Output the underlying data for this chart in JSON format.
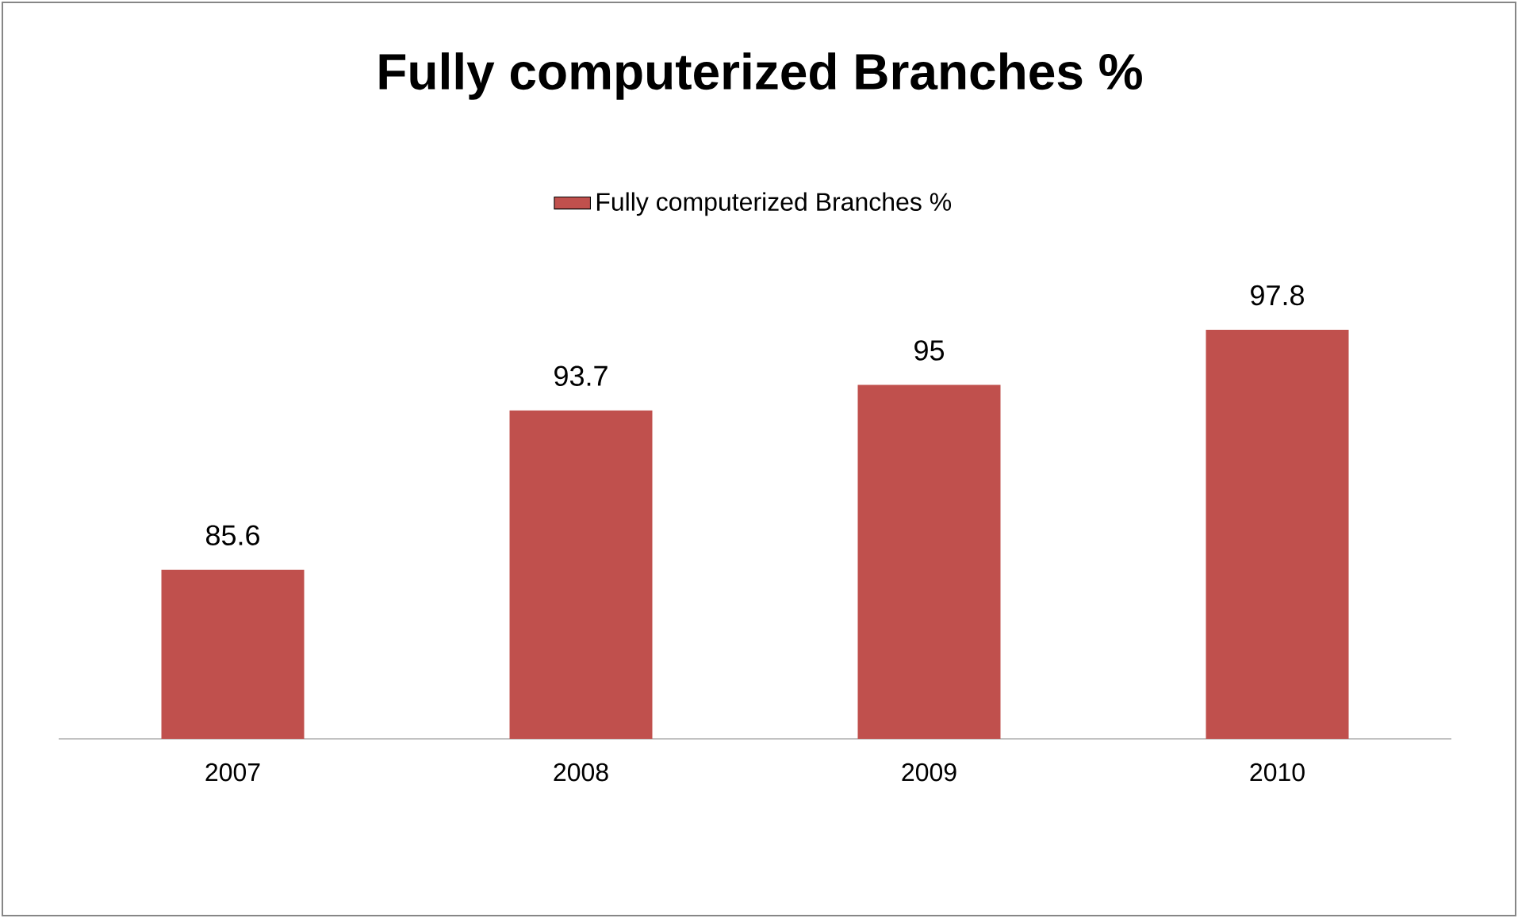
{
  "chart_data": {
    "type": "bar",
    "title": "Fully computerized Branches %",
    "categories": [
      "2007",
      "2008",
      "2009",
      "2010"
    ],
    "series": [
      {
        "name": "Fully computerized Branches %",
        "color": "#c0504d",
        "values": [
          85.6,
          93.7,
          95,
          97.8
        ]
      }
    ],
    "ylim": [
      77,
      97.8
    ],
    "tick_labels": "x",
    "data_labels": true,
    "legend": "top",
    "grid": false
  }
}
